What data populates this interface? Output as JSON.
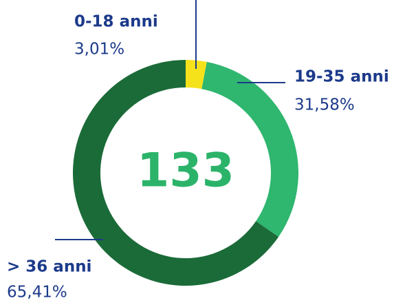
{
  "chart_data": {
    "type": "pie",
    "donut": true,
    "categories": [
      "0-18 anni",
      "19-35 anni",
      "> 36 anni"
    ],
    "values": [
      3.01,
      31.58,
      65.41
    ],
    "value_labels": [
      "3,01%",
      "31,58%",
      "65,41%"
    ],
    "colors": [
      "#f5e21b",
      "#2fb66f",
      "#1b6b38"
    ],
    "center_value": 133
  }
}
